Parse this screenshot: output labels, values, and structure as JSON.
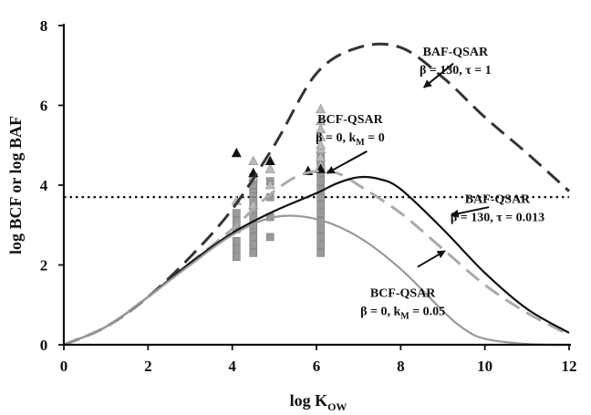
{
  "chart_data": {
    "type": "line",
    "xlabel_main": "log K",
    "xlabel_sub": "OW",
    "ylabel": "log BCF or log BAF",
    "xlim": [
      0,
      12
    ],
    "ylim": [
      0,
      8
    ],
    "x_ticks": [
      0,
      2,
      4,
      6,
      8,
      10,
      12
    ],
    "y_ticks": [
      0,
      2,
      4,
      6,
      8
    ],
    "grid": false,
    "legend": "none",
    "reference_line": {
      "y": 3.7,
      "style": "dotted",
      "color": "#111111"
    },
    "series": [
      {
        "style": "dashed",
        "color": "#333333",
        "x": [
          0,
          1,
          2,
          3,
          4,
          5,
          6,
          7,
          8,
          9,
          10,
          11,
          12
        ],
        "y": [
          0,
          0.45,
          1.2,
          2.2,
          3.4,
          5.0,
          6.8,
          7.45,
          7.45,
          6.7,
          5.7,
          4.8,
          3.85
        ]
      },
      {
        "style": "dashed",
        "color": "#aaaaaa",
        "x": [
          0,
          1,
          2,
          3,
          4,
          4.5,
          5,
          5.5,
          6,
          6.5,
          7,
          8,
          9,
          10,
          11,
          12
        ],
        "y": [
          0,
          0.45,
          1.2,
          2.05,
          2.9,
          3.4,
          3.85,
          4.2,
          4.35,
          4.3,
          4.0,
          3.3,
          2.4,
          1.5,
          0.8,
          0.25
        ]
      },
      {
        "style": "solid",
        "color": "#111111",
        "x": [
          0,
          1,
          2,
          3,
          4,
          5,
          6,
          6.5,
          7,
          7.5,
          8,
          9,
          10,
          11,
          12
        ],
        "y": [
          0,
          0.45,
          1.2,
          2.05,
          2.8,
          3.35,
          3.8,
          4.05,
          4.2,
          4.15,
          3.9,
          2.9,
          1.8,
          0.9,
          0.3
        ]
      },
      {
        "style": "solid",
        "color": "#999999",
        "x": [
          0,
          1,
          2,
          3,
          4,
          5,
          6,
          7,
          8,
          9,
          9.5,
          10,
          11,
          12
        ],
        "y": [
          0,
          0.45,
          1.2,
          2.0,
          2.75,
          3.2,
          3.15,
          2.7,
          1.9,
          0.85,
          0.4,
          0.15,
          0.02,
          0
        ]
      }
    ],
    "scatter": {
      "squares": {
        "color": "#9a9a9a",
        "x": [
          4.1,
          4.1,
          4.1,
          4.1,
          4.1,
          4.1,
          4.5,
          4.5,
          4.5,
          4.5,
          4.5,
          4.5,
          4.5,
          4.5,
          4.5,
          4.5,
          4.5,
          4.5,
          4.9,
          4.9,
          4.9,
          4.9,
          6.1,
          6.1,
          6.1,
          6.1,
          6.1,
          6.1,
          6.1,
          6.1,
          6.1,
          6.1,
          6.1,
          6.1,
          6.1
        ],
        "y": [
          2.2,
          2.4,
          2.6,
          2.9,
          3.1,
          3.3,
          2.3,
          2.5,
          2.7,
          2.9,
          3.0,
          3.2,
          3.4,
          3.6,
          3.8,
          3.9,
          4.0,
          4.2,
          2.7,
          3.2,
          3.7,
          4.1,
          2.3,
          2.5,
          2.7,
          2.9,
          3.1,
          3.3,
          3.5,
          3.7,
          3.9,
          4.1,
          4.3,
          4.5,
          4.7
        ]
      },
      "triangles_light": {
        "color": "#bbbbbb",
        "x": [
          4.1,
          4.5,
          4.5,
          4.5,
          4.9,
          4.9,
          6.1,
          6.1,
          6.1,
          6.1,
          6.1,
          6.1,
          6.1,
          6.1,
          6.1
        ],
        "y": [
          3.6,
          3.5,
          4.2,
          4.6,
          4.0,
          4.4,
          4.5,
          4.7,
          4.9,
          5.0,
          5.2,
          5.4,
          5.6,
          5.9,
          4.4
        ]
      },
      "triangles_dark": {
        "color": "#111111",
        "x": [
          4.1,
          4.5,
          4.9,
          5.8,
          6.1
        ],
        "y": [
          4.8,
          4.3,
          4.6,
          4.35,
          4.4
        ]
      }
    },
    "annotations": [
      {
        "lines": [
          "BAF-QSAR",
          "β = 130, τ = 1"
        ],
        "text_at": [
          9.3,
          7.25
        ],
        "arrow_from": [
          9.25,
          7.05
        ],
        "arrow_to": [
          8.55,
          6.45
        ]
      },
      {
        "lines": [
          "BCF-QSAR",
          "β = 0, k_M = 0"
        ],
        "text_at": [
          6.8,
          5.55
        ],
        "arrow_from": [
          7.2,
          4.85
        ],
        "arrow_to": [
          6.25,
          4.3
        ]
      },
      {
        "lines": [
          "BAF-QSAR",
          "β = 130, τ = 0.013"
        ],
        "text_at": [
          10.3,
          3.55
        ],
        "arrow_from": [
          10.1,
          3.45
        ],
        "arrow_to": [
          9.2,
          3.25
        ]
      },
      {
        "lines": [
          "BCF-QSAR",
          "β = 0, k_M = 0.05"
        ],
        "text_at": [
          8.05,
          1.2
        ],
        "arrow_from": [
          8.4,
          1.95
        ],
        "arrow_to": [
          9.05,
          2.35
        ]
      }
    ]
  }
}
